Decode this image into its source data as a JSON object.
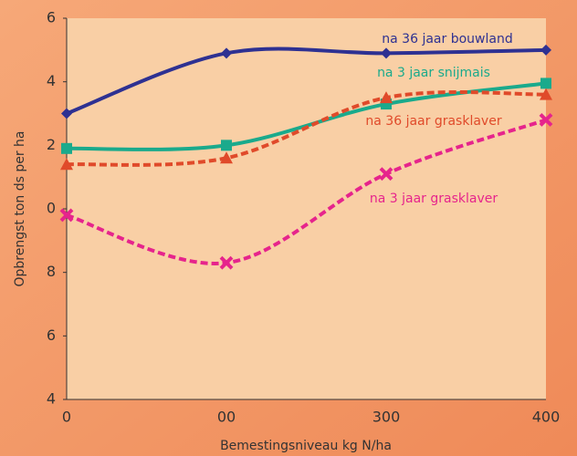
{
  "chart_data": {
    "type": "line",
    "x_label": "Bemestingsniveau kg N/ha",
    "y_label": "Opbrengst ton ds per ha",
    "categories": [
      "0",
      "00",
      "300",
      "400"
    ],
    "ylim": [
      4,
      16
    ],
    "yticks": [
      4,
      6,
      8,
      {
        "value": 10,
        "label": "0"
      },
      {
        "value": 12,
        "label": "2"
      },
      {
        "value": 14,
        "label": "4"
      },
      {
        "value": 16,
        "label": "6"
      }
    ],
    "series": [
      {
        "name": "na 36 jaar bouwland",
        "color": "#2e3192",
        "marker": "diamond",
        "dashed": false,
        "values": [
          13,
          14.9,
          14.9,
          15
        ]
      },
      {
        "name": "na 3 jaar snijmais",
        "color": "#1aaa8c",
        "marker": "square",
        "dashed": false,
        "values": [
          11.9,
          12,
          13.3,
          13.95
        ]
      },
      {
        "name": "na 36 jaar grasklaver",
        "color": "#e04a2a",
        "marker": "triangle",
        "dashed": true,
        "values": [
          11.4,
          11.6,
          13.5,
          13.6
        ]
      },
      {
        "name": "na 3 jaar grasklaver",
        "color": "#e6248c",
        "marker": "x",
        "dashed": true,
        "values": [
          9.8,
          8.3,
          11.1,
          12.8
        ]
      }
    ]
  }
}
